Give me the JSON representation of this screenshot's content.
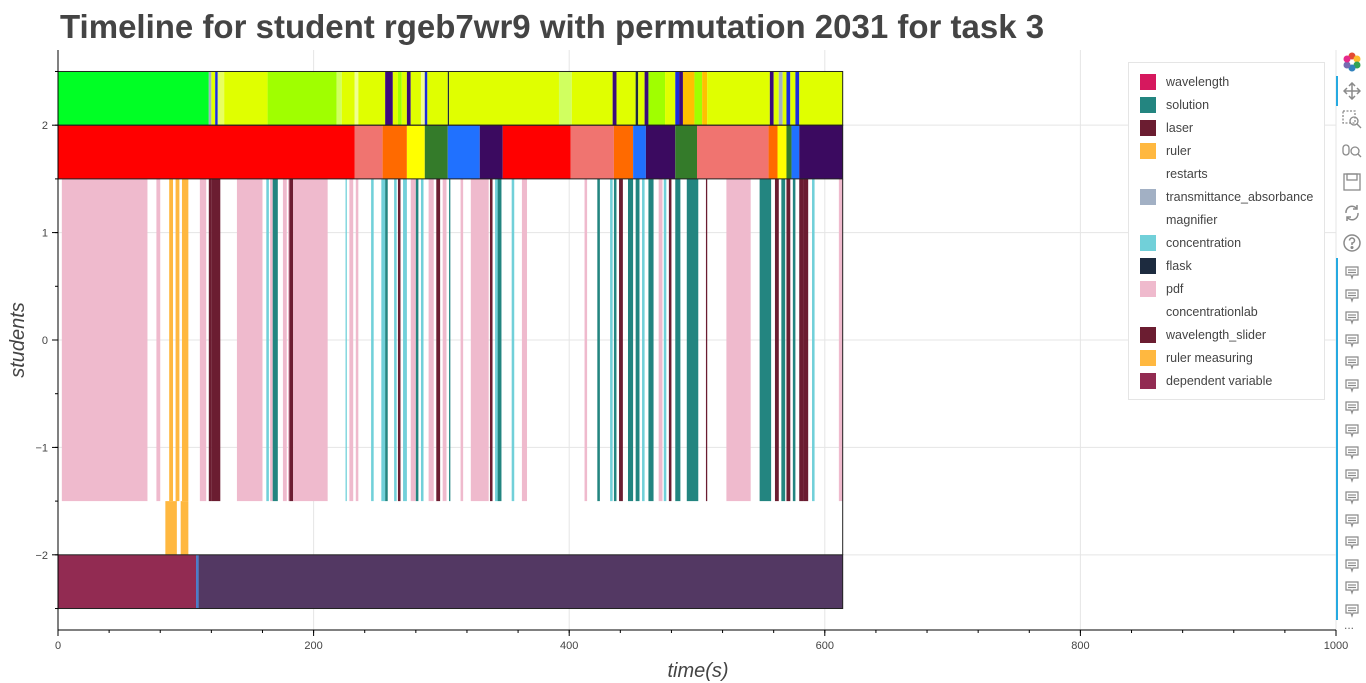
{
  "chart_data": {
    "type": "timeline",
    "title": "Timeline for student rgeb7wr9 with permutation 2031 for task 3",
    "xlabel": "time(s)",
    "ylabel": "students",
    "xlim": [
      0,
      1000
    ],
    "ylim": [
      -2.7,
      2.7
    ],
    "x_ticks": [
      0,
      200,
      400,
      600,
      800,
      1000
    ],
    "y_ticks": [
      2,
      1,
      0,
      -1,
      -2
    ],
    "y_tick_labels": [
      "2",
      "1",
      "0",
      "−1",
      "−2"
    ],
    "grid": true,
    "legend_position": "top-right",
    "legend": [
      {
        "name": "wavelength",
        "color": "#d6185e"
      },
      {
        "name": "solution",
        "color": "#238580"
      },
      {
        "name": "laser",
        "color": "#6b1d31"
      },
      {
        "name": "ruler",
        "color": "#ffb840"
      },
      {
        "name": "restarts",
        "color": "#ffffff"
      },
      {
        "name": "transmittance_absorbance",
        "color": "#a2b0c4"
      },
      {
        "name": "magnifier",
        "color": "#ffffff"
      },
      {
        "name": "concentration",
        "color": "#71d0d9"
      },
      {
        "name": "flask",
        "color": "#1d2b3f"
      },
      {
        "name": "pdf",
        "color": "#efbacd"
      },
      {
        "name": "concentrationlab",
        "color": "#ffffff"
      },
      {
        "name": "wavelength_slider",
        "color": "#6b1d31"
      },
      {
        "name": "ruler measuring",
        "color": "#ffb840"
      },
      {
        "name": "dependent variable",
        "color": "#922b52"
      }
    ],
    "rows": [
      {
        "y0": 2,
        "y1": 2.5,
        "segments": [
          [
            0,
            118,
            "#00ff25"
          ],
          [
            118,
            120,
            "#a2b0c4"
          ],
          [
            120,
            123,
            "#e0ff00"
          ],
          [
            123,
            125,
            "#1c2cdc"
          ],
          [
            125,
            130,
            "#e8ff60"
          ],
          [
            130,
            164,
            "#e0ff00"
          ],
          [
            164,
            218,
            "#a0ff00"
          ],
          [
            218,
            222,
            "#d0ff60"
          ],
          [
            222,
            232,
            "#e0ff00"
          ],
          [
            232,
            235,
            "#f0ff90"
          ],
          [
            235,
            256,
            "#e0ff00"
          ],
          [
            256,
            262,
            "#3b0a7c"
          ],
          [
            262,
            266,
            "#e0ff00"
          ],
          [
            266,
            269,
            "#a0ff00"
          ],
          [
            269,
            273,
            "#e0ff00"
          ],
          [
            273,
            276,
            "#3b0a7c"
          ],
          [
            276,
            284,
            "#e0ff00"
          ],
          [
            284,
            287,
            "#f0ff90"
          ],
          [
            287,
            289,
            "#1c2cdc"
          ],
          [
            289,
            305,
            "#e0ff00"
          ],
          [
            305,
            306,
            "#1d2b3f"
          ],
          [
            306,
            392,
            "#e0ff00"
          ],
          [
            392,
            402,
            "#d0ff60"
          ],
          [
            402,
            434,
            "#e0ff00"
          ],
          [
            434,
            437,
            "#3b0a7c"
          ],
          [
            437,
            452,
            "#e0ff00"
          ],
          [
            452,
            454,
            "#1d2b3f"
          ],
          [
            454,
            459,
            "#e0ff00"
          ],
          [
            459,
            462,
            "#3b0a7c"
          ],
          [
            462,
            475,
            "#a0ff00"
          ],
          [
            475,
            483,
            "#e0ff00"
          ],
          [
            483,
            486,
            "#1c2cdc"
          ],
          [
            486,
            489,
            "#3b0a7c"
          ],
          [
            489,
            498,
            "#ffc000"
          ],
          [
            498,
            504,
            "#a0ff00"
          ],
          [
            504,
            508,
            "#ffc000"
          ],
          [
            508,
            557,
            "#e0ff00"
          ],
          [
            557,
            560,
            "#3b0a7c"
          ],
          [
            560,
            564,
            "#e0ff00"
          ],
          [
            564,
            567,
            "#a2b0c4"
          ],
          [
            567,
            570,
            "#e0ff00"
          ],
          [
            570,
            573,
            "#1c2cdc"
          ],
          [
            573,
            577,
            "#e0ff00"
          ],
          [
            577,
            580,
            "#1c2cdc"
          ],
          [
            580,
            614,
            "#e0ff00"
          ]
        ]
      },
      {
        "y0": 1.5,
        "y1": 2,
        "segments": [
          [
            0,
            232,
            "#ff0000"
          ],
          [
            232,
            254,
            "#f07470"
          ],
          [
            254,
            273,
            "#ff6a00"
          ],
          [
            273,
            287,
            "#ffff00"
          ],
          [
            287,
            305,
            "#347b2a"
          ],
          [
            305,
            330,
            "#2071ff"
          ],
          [
            330,
            348,
            "#3b0a60"
          ],
          [
            348,
            401,
            "#ff0000"
          ],
          [
            401,
            435,
            "#f07470"
          ],
          [
            435,
            450,
            "#ff6a00"
          ],
          [
            450,
            460,
            "#2071ff"
          ],
          [
            460,
            483,
            "#3b0a60"
          ],
          [
            483,
            500,
            "#347b2a"
          ],
          [
            500,
            556,
            "#f07470"
          ],
          [
            556,
            563,
            "#ff6a00"
          ],
          [
            563,
            570,
            "#ffff00"
          ],
          [
            570,
            574,
            "#347b2a"
          ],
          [
            574,
            580,
            "#2071ff"
          ],
          [
            580,
            614,
            "#3b0a60"
          ]
        ]
      },
      {
        "y0": -1.5,
        "y1": 1.5,
        "segments": [
          [
            3,
            70,
            "#efbacd"
          ],
          [
            77,
            80,
            "#efbacd"
          ],
          [
            87,
            90,
            "#ffb840"
          ],
          [
            92,
            95,
            "#ffb840"
          ],
          [
            97,
            102,
            "#ffb840"
          ],
          [
            111,
            116,
            "#efbacd"
          ],
          [
            118,
            120,
            "#6b1d31"
          ],
          [
            120,
            127,
            "#6b1d31"
          ],
          [
            140,
            160,
            "#efbacd"
          ],
          [
            163,
            165,
            "#71d0d9"
          ],
          [
            166,
            168,
            "#efbacd"
          ],
          [
            168,
            172,
            "#238580"
          ],
          [
            176,
            179,
            "#efbacd"
          ],
          [
            180,
            181,
            "#efbacd"
          ],
          [
            181,
            184,
            "#6b1d31"
          ],
          [
            184,
            211,
            "#efbacd"
          ],
          [
            225,
            226,
            "#71d0d9"
          ],
          [
            228,
            231,
            "#efbacd"
          ],
          [
            233,
            235,
            "#efbacd"
          ],
          [
            245,
            247,
            "#71d0d9"
          ],
          [
            253,
            256,
            "#71d0d9"
          ],
          [
            256,
            258,
            "#238580"
          ],
          [
            263,
            265,
            "#71d0d9"
          ],
          [
            266,
            268,
            "#6b1d31"
          ],
          [
            270,
            273,
            "#71d0d9"
          ],
          [
            276,
            280,
            "#efbacd"
          ],
          [
            280,
            282,
            "#238580"
          ],
          [
            284,
            286,
            "#71d0d9"
          ],
          [
            290,
            294,
            "#efbacd"
          ],
          [
            296,
            299,
            "#6b1d31"
          ],
          [
            301,
            304,
            "#efbacd"
          ],
          [
            306,
            307,
            "#238580"
          ],
          [
            315,
            317,
            "#efbacd"
          ],
          [
            323,
            337,
            "#efbacd"
          ],
          [
            338,
            340,
            "#6b1d31"
          ],
          [
            342,
            344,
            "#71d0d9"
          ],
          [
            344,
            347,
            "#238580"
          ],
          [
            355,
            357,
            "#71d0d9"
          ],
          [
            363,
            367,
            "#efbacd"
          ],
          [
            412,
            414,
            "#efbacd"
          ],
          [
            422,
            424,
            "#238580"
          ],
          [
            432,
            434,
            "#71d0d9"
          ],
          [
            435,
            437,
            "#238580"
          ],
          [
            439,
            442,
            "#6b1d31"
          ],
          [
            446,
            450,
            "#238580"
          ],
          [
            452,
            455,
            "#238580"
          ],
          [
            457,
            459,
            "#71d0d9"
          ],
          [
            462,
            466,
            "#238580"
          ],
          [
            470,
            473,
            "#efbacd"
          ],
          [
            474,
            476,
            "#71d0d9"
          ],
          [
            478,
            480,
            "#6b1d31"
          ],
          [
            483,
            487,
            "#238580"
          ],
          [
            492,
            501,
            "#238580"
          ],
          [
            507,
            508,
            "#6b1d31"
          ],
          [
            523,
            542,
            "#efbacd"
          ],
          [
            549,
            558,
            "#238580"
          ],
          [
            561,
            564,
            "#6b1d31"
          ],
          [
            566,
            569,
            "#238580"
          ],
          [
            570,
            573,
            "#6b1d31"
          ],
          [
            575,
            577,
            "#238580"
          ],
          [
            580,
            583,
            "#6b1d31"
          ],
          [
            583,
            587,
            "#6b1d31"
          ],
          [
            590,
            592,
            "#71d0d9"
          ],
          [
            611,
            614,
            "#efbacd"
          ]
        ]
      },
      {
        "y0": -2,
        "y1": -1.5,
        "segments": [
          [
            84,
            93,
            "#ffb840"
          ],
          [
            96,
            102,
            "#ffb840"
          ]
        ]
      },
      {
        "y0": -2.5,
        "y1": -2,
        "segments": [
          [
            0,
            108,
            "#922b52"
          ],
          [
            108,
            110,
            "#4a7bc8"
          ],
          [
            110,
            614,
            "#533863"
          ]
        ]
      }
    ],
    "outlines": [
      {
        "x0": 0,
        "x1": 614,
        "y0": 2,
        "y1": 2.5
      },
      {
        "x0": 0,
        "x1": 614,
        "y0": 1.5,
        "y1": 2
      },
      {
        "x0": 0,
        "x1": 614,
        "y0": -2.5,
        "y1": -2
      },
      {
        "x0": 614,
        "x1": 614,
        "y0": -2,
        "y1": 1.5
      }
    ]
  },
  "toolbar": {
    "logo_icon": "bokeh-logo-icon",
    "tools": [
      "pan-icon",
      "box-zoom-icon",
      "wheel-zoom-icon",
      "save-icon",
      "reset-icon",
      "help-icon"
    ],
    "hover_tool_count": 16,
    "more_label": "..."
  }
}
